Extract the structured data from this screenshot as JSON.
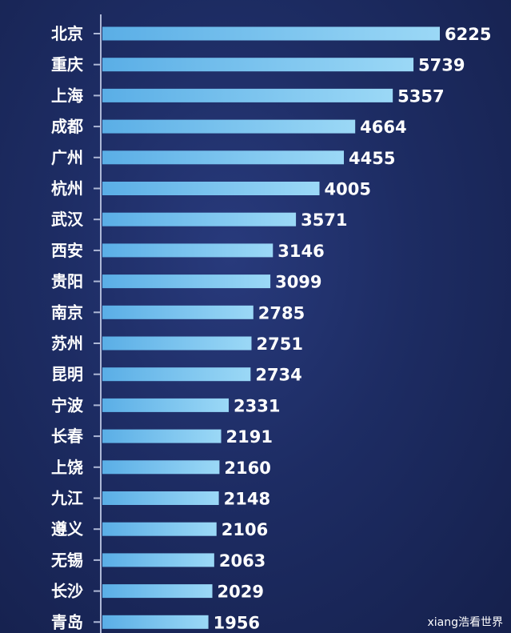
{
  "chart_data": {
    "type": "bar",
    "orientation": "horizontal",
    "categories": [
      "北京",
      "重庆",
      "上海",
      "成都",
      "广州",
      "杭州",
      "武汉",
      "西安",
      "贵阳",
      "南京",
      "苏州",
      "昆明",
      "宁波",
      "长春",
      "上饶",
      "九江",
      "遵义",
      "无锡",
      "长沙",
      "青岛"
    ],
    "values": [
      6225,
      5739,
      5357,
      4664,
      4455,
      4005,
      3571,
      3146,
      3099,
      2785,
      2751,
      2734,
      2331,
      2191,
      2160,
      2148,
      2106,
      2063,
      2029,
      1956
    ],
    "title": "",
    "xlabel": "",
    "ylabel": "",
    "xlim": [
      0,
      6225
    ],
    "grid": false,
    "bar_color": "#8fd0f2",
    "background_color": "#1d2c63"
  },
  "watermark": "xiang浩看世界"
}
